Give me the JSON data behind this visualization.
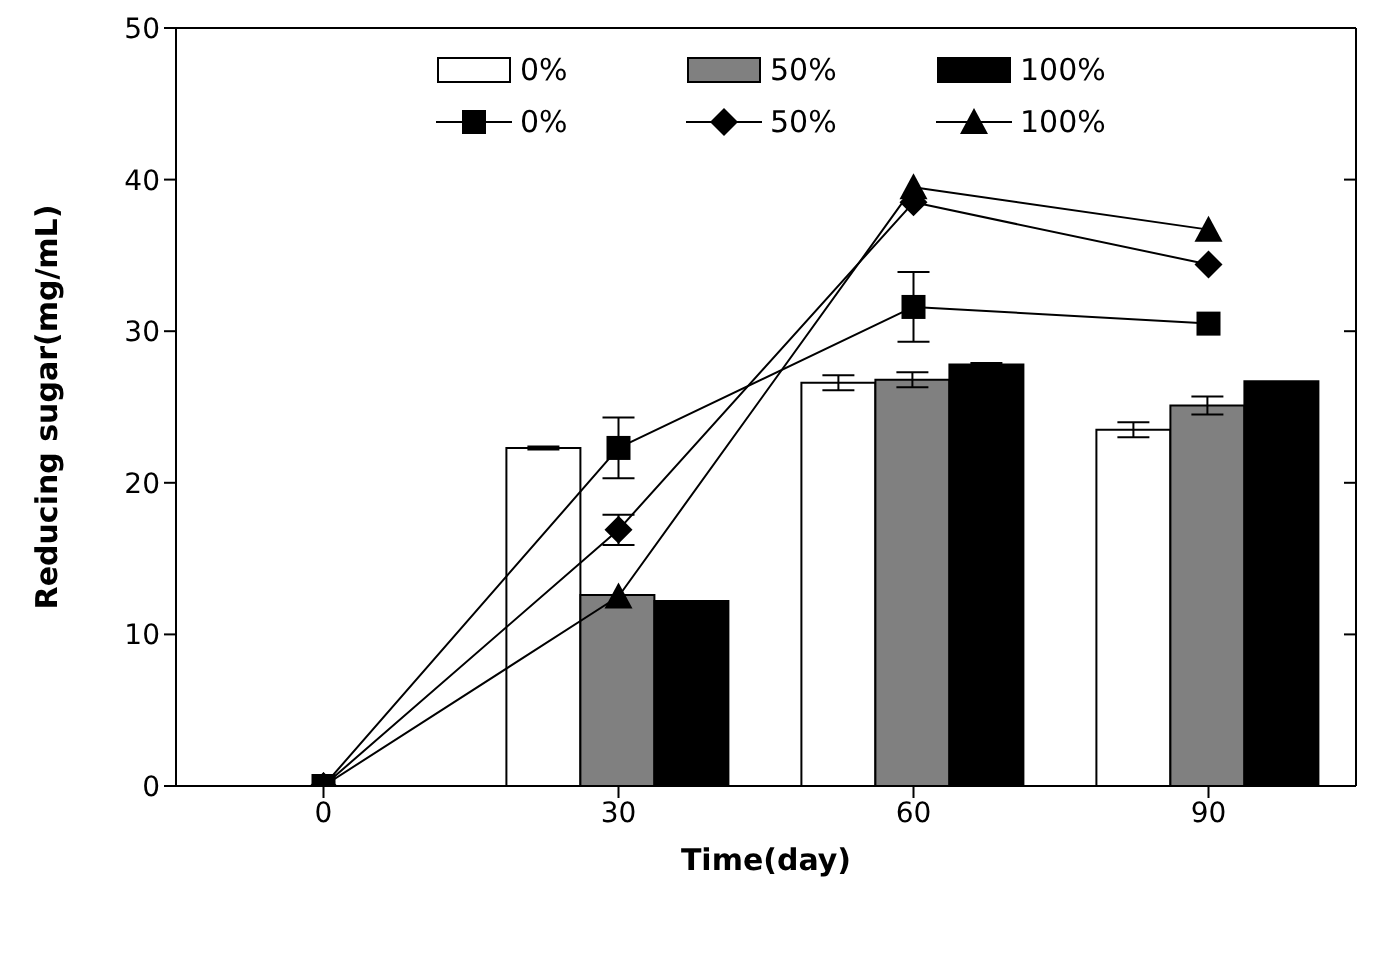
{
  "chart_data": {
    "type": "bar",
    "xlabel": "Time(day)",
    "ylabel": "Reducing sugar(mg/mL)",
    "categories": [
      "0",
      "30",
      "60",
      "90"
    ],
    "ylim": [
      0,
      50
    ],
    "yticks": [
      0,
      10,
      20,
      30,
      40,
      50
    ],
    "grid": false,
    "legend": "top",
    "series": [
      {
        "name": "0%",
        "color": "#ffffff",
        "values": [
          null,
          22.3,
          26.6,
          23.5
        ],
        "errors": [
          null,
          0.1,
          0.5,
          0.5
        ]
      },
      {
        "name": "50%",
        "color": "#808080",
        "values": [
          null,
          12.6,
          26.8,
          25.1
        ],
        "errors": [
          null,
          null,
          0.5,
          0.6
        ]
      },
      {
        "name": "100%",
        "color": "#000000",
        "values": [
          null,
          12.2,
          27.8,
          26.7
        ],
        "errors": [
          null,
          null,
          0.1,
          null
        ]
      },
      {
        "name": "0%",
        "type": "line",
        "marker": "square",
        "color": "#000000",
        "values": [
          0,
          22.3,
          31.6,
          30.5
        ],
        "errors": [
          null,
          2.0,
          2.3,
          null
        ]
      },
      {
        "name": "50%",
        "type": "line",
        "marker": "diamond",
        "color": "#000000",
        "values": [
          0,
          16.9,
          38.5,
          34.4
        ],
        "errors": [
          null,
          1.0,
          null,
          null
        ]
      },
      {
        "name": "100%",
        "type": "line",
        "marker": "triangle",
        "color": "#000000",
        "values": [
          0,
          12.5,
          39.5,
          36.7
        ],
        "errors": [
          null,
          null,
          null,
          null
        ]
      }
    ]
  }
}
